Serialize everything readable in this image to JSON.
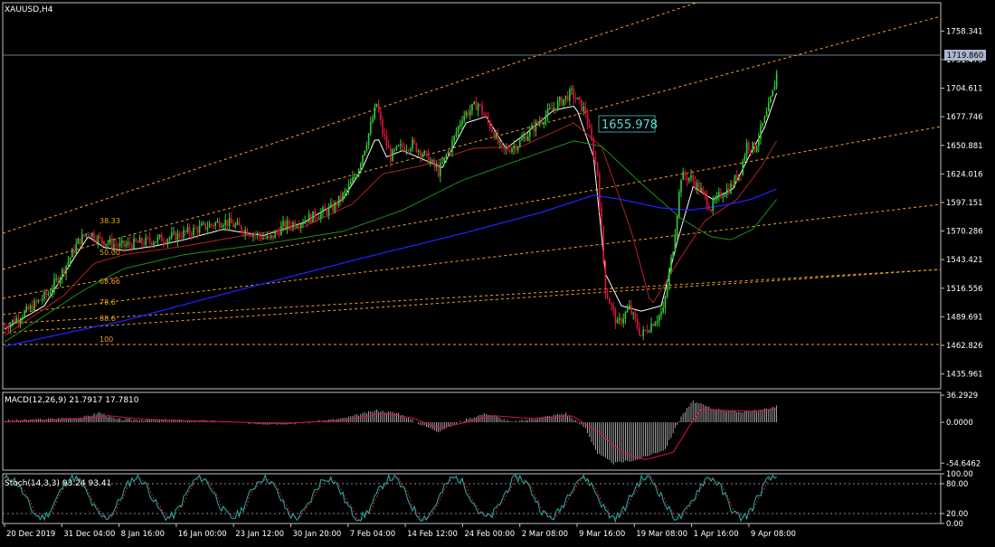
{
  "symbol_label": "XAUUSD,H4",
  "price_label": "1655.978",
  "current_price": "1719.860",
  "colors": {
    "background": "#000000",
    "frame": "#c0c0c0",
    "bull": "#32cd32",
    "bear": "#dc143c",
    "fib": "#f4a020",
    "ma_fast": "#ffffff",
    "ma_mid": "#b22222",
    "ma_green": "#1e8c1e",
    "ma_slow": "#2020ff",
    "macd_signal": "#dc143c",
    "stoch_main": "#20b2aa",
    "stoch_signal": "#dc143c",
    "price_tag": "#aab7cf"
  },
  "chart_data": [
    {
      "type": "candlestick",
      "title": "XAUUSD,H4",
      "ylim": [
        1422,
        1785
      ],
      "yticks": [
        "1758.341",
        "1731.476",
        "1704.611",
        "1677.746",
        "1650.881",
        "1624.016",
        "1597.151",
        "1570.286",
        "1543.421",
        "1516.556",
        "1489.691",
        "1462.826",
        "1435.961"
      ],
      "xticks": [
        "20 Dec 2019",
        "31 Dec 04:00",
        "8 Jan 16:00",
        "16 Jan 00:00",
        "23 Jan 12:00",
        "30 Jan 20:00",
        "7 Feb 04:00",
        "14 Feb 12:00",
        "24 Feb 00:00",
        "2 Mar 08:00",
        "9 Mar 16:00",
        "19 Mar 08:00",
        "1 Apr 16:00",
        "9 Apr 08:00"
      ],
      "fib_levels": [
        "38.33",
        "50.00",
        "68.66",
        "78.6",
        "88.6",
        "100"
      ],
      "annotation": "1655.978",
      "current_price": 1719.86,
      "path": [
        [
          0,
          1480
        ],
        [
          12,
          1496
        ],
        [
          22,
          1512
        ],
        [
          30,
          1535
        ],
        [
          37,
          1560
        ],
        [
          42,
          1570
        ],
        [
          48,
          1562
        ],
        [
          58,
          1556
        ],
        [
          70,
          1560
        ],
        [
          85,
          1565
        ],
        [
          100,
          1574
        ],
        [
          110,
          1580
        ],
        [
          120,
          1572
        ],
        [
          133,
          1562
        ],
        [
          140,
          1575
        ],
        [
          150,
          1580
        ],
        [
          165,
          1592
        ],
        [
          172,
          1608
        ],
        [
          177,
          1625
        ],
        [
          182,
          1655
        ],
        [
          187,
          1690
        ],
        [
          190,
          1663
        ],
        [
          194,
          1640
        ],
        [
          198,
          1648
        ],
        [
          205,
          1652
        ],
        [
          212,
          1640
        ],
        [
          218,
          1626
        ],
        [
          224,
          1648
        ],
        [
          230,
          1678
        ],
        [
          238,
          1690
        ],
        [
          246,
          1662
        ],
        [
          250,
          1645
        ],
        [
          258,
          1652
        ],
        [
          268,
          1672
        ],
        [
          278,
          1690
        ],
        [
          285,
          1700
        ],
        [
          292,
          1682
        ],
        [
          298,
          1625
        ],
        [
          302,
          1515
        ],
        [
          308,
          1482
        ],
        [
          314,
          1498
        ],
        [
          320,
          1472
        ],
        [
          326,
          1485
        ],
        [
          331,
          1495
        ],
        [
          336,
          1555
        ],
        [
          340,
          1622
        ],
        [
          345,
          1620
        ],
        [
          350,
          1608
        ],
        [
          355,
          1592
        ],
        [
          360,
          1605
        ],
        [
          365,
          1612
        ],
        [
          370,
          1628
        ],
        [
          373,
          1652
        ],
        [
          377,
          1648
        ],
        [
          380,
          1665
        ],
        [
          383,
          1680
        ],
        [
          386,
          1700
        ],
        [
          388,
          1718
        ]
      ],
      "moving_averages": [
        {
          "name": "fast",
          "points": [
            [
              0,
              1478
            ],
            [
              20,
              1500
            ],
            [
              35,
              1545
            ],
            [
              42,
              1565
            ],
            [
              50,
              1555
            ],
            [
              60,
              1552
            ],
            [
              75,
              1556
            ],
            [
              90,
              1562
            ],
            [
              110,
              1572
            ],
            [
              130,
              1566
            ],
            [
              150,
              1578
            ],
            [
              170,
              1600
            ],
            [
              180,
              1630
            ],
            [
              187,
              1660
            ],
            [
              192,
              1640
            ],
            [
              200,
              1646
            ],
            [
              210,
              1638
            ],
            [
              220,
              1630
            ],
            [
              232,
              1672
            ],
            [
              242,
              1678
            ],
            [
              252,
              1648
            ],
            [
              262,
              1662
            ],
            [
              276,
              1684
            ],
            [
              287,
              1688
            ],
            [
              296,
              1640
            ],
            [
              302,
              1530
            ],
            [
              310,
              1500
            ],
            [
              320,
              1495
            ],
            [
              330,
              1500
            ],
            [
              338,
              1560
            ],
            [
              346,
              1612
            ],
            [
              356,
              1600
            ],
            [
              366,
              1610
            ],
            [
              374,
              1640
            ],
            [
              382,
              1668
            ],
            [
              388,
              1700
            ]
          ]
        },
        {
          "name": "mid",
          "points": [
            [
              0,
              1472
            ],
            [
              30,
              1510
            ],
            [
              45,
              1540
            ],
            [
              60,
              1548
            ],
            [
              90,
              1556
            ],
            [
              120,
              1566
            ],
            [
              150,
              1574
            ],
            [
              175,
              1596
            ],
            [
              190,
              1624
            ],
            [
              210,
              1632
            ],
            [
              235,
              1648
            ],
            [
              260,
              1650
            ],
            [
              286,
              1672
            ],
            [
              300,
              1650
            ],
            [
              315,
              1570
            ],
            [
              325,
              1500
            ],
            [
              338,
              1540
            ],
            [
              352,
              1580
            ],
            [
              368,
              1600
            ],
            [
              380,
              1630
            ],
            [
              388,
              1655
            ]
          ]
        },
        {
          "name": "green",
          "points": [
            [
              0,
              1466
            ],
            [
              40,
              1515
            ],
            [
              60,
              1535
            ],
            [
              90,
              1548
            ],
            [
              130,
              1558
            ],
            [
              170,
              1570
            ],
            [
              200,
              1590
            ],
            [
              230,
              1618
            ],
            [
              260,
              1638
            ],
            [
              286,
              1655
            ],
            [
              300,
              1650
            ],
            [
              320,
              1615
            ],
            [
              340,
              1582
            ],
            [
              355,
              1565
            ],
            [
              365,
              1562
            ],
            [
              376,
              1572
            ],
            [
              388,
              1600
            ]
          ]
        },
        {
          "name": "slow",
          "points": [
            [
              0,
              1462
            ],
            [
              60,
              1486
            ],
            [
              120,
              1516
            ],
            [
              180,
              1545
            ],
            [
              230,
              1568
            ],
            [
              270,
              1588
            ],
            [
              296,
              1604
            ],
            [
              310,
              1600
            ],
            [
              330,
              1592
            ],
            [
              345,
              1590
            ],
            [
              360,
              1594
            ],
            [
              375,
              1600
            ],
            [
              388,
              1610
            ]
          ]
        }
      ]
    },
    {
      "type": "histogram",
      "title": "MACD(12,26,9) 21.7917 17.7810",
      "ylim": [
        -64,
        40
      ],
      "yticks": [
        "36.2929",
        "0.0000",
        "-54.6462"
      ],
      "path": [
        [
          0,
          2
        ],
        [
          20,
          4
        ],
        [
          40,
          7
        ],
        [
          48,
          13
        ],
        [
          56,
          4
        ],
        [
          80,
          3
        ],
        [
          110,
          1
        ],
        [
          130,
          -2
        ],
        [
          150,
          -1
        ],
        [
          170,
          5
        ],
        [
          187,
          16
        ],
        [
          198,
          12
        ],
        [
          210,
          -4
        ],
        [
          218,
          -12
        ],
        [
          232,
          4
        ],
        [
          242,
          12
        ],
        [
          255,
          0
        ],
        [
          282,
          12
        ],
        [
          292,
          -8
        ],
        [
          298,
          -42
        ],
        [
          306,
          -55
        ],
        [
          318,
          -50
        ],
        [
          332,
          -36
        ],
        [
          340,
          8
        ],
        [
          346,
          28
        ],
        [
          356,
          18
        ],
        [
          368,
          14
        ],
        [
          380,
          16
        ],
        [
          388,
          22
        ]
      ],
      "signal": [
        [
          0,
          1
        ],
        [
          20,
          3
        ],
        [
          40,
          5
        ],
        [
          52,
          9
        ],
        [
          70,
          4
        ],
        [
          110,
          1
        ],
        [
          140,
          -2
        ],
        [
          175,
          4
        ],
        [
          190,
          12
        ],
        [
          205,
          6
        ],
        [
          218,
          -8
        ],
        [
          232,
          0
        ],
        [
          245,
          9
        ],
        [
          265,
          5
        ],
        [
          285,
          9
        ],
        [
          298,
          -12
        ],
        [
          310,
          -40
        ],
        [
          322,
          -50
        ],
        [
          336,
          -40
        ],
        [
          344,
          -6
        ],
        [
          350,
          18
        ],
        [
          362,
          16
        ],
        [
          376,
          15
        ],
        [
          388,
          18
        ]
      ]
    },
    {
      "type": "line",
      "title": "Stoch(14,3,3) 93.24 93.41",
      "ylim": [
        0,
        100
      ],
      "yticks": [
        "100.00",
        "80.00",
        "20.00",
        "0.00"
      ],
      "period": 16,
      "phase": 1.1,
      "center": 52,
      "amplitude": 40,
      "start": 20,
      "end": 94
    }
  ]
}
